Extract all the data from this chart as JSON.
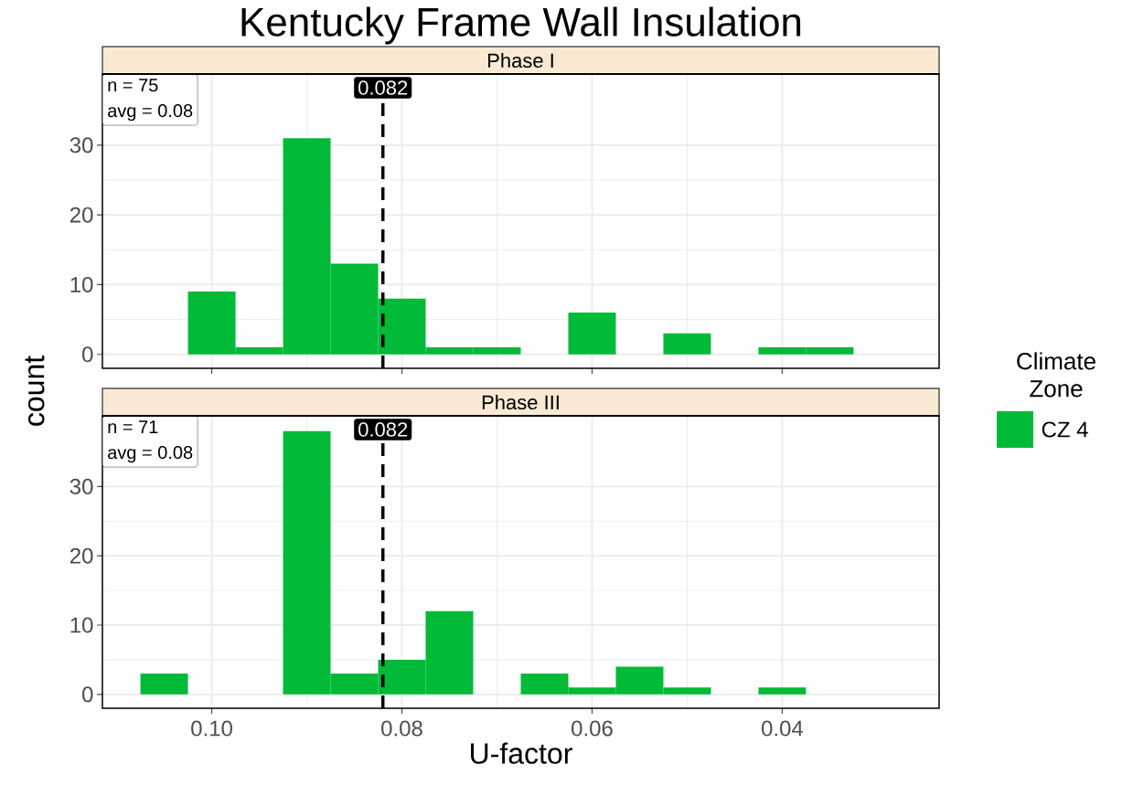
{
  "chart_data": [
    {
      "type": "histogram",
      "title": "Kentucky Frame Wall Insulation",
      "subtitle": "Phase I",
      "ylabel": "count",
      "legend_title": "Climate Zone",
      "legend": "right",
      "bins": [
        0.0325,
        0.0375,
        0.0425,
        0.0475,
        0.0525,
        0.0575,
        0.0625,
        0.0675,
        0.0725,
        0.0775,
        0.0825,
        0.0875,
        0.0925,
        0.0975,
        0.1025,
        0.1075
      ],
      "series": [
        {
          "name": "CZ 4",
          "color": "#00ba38",
          "values": [
            1,
            1,
            0,
            3,
            0,
            6,
            0,
            1,
            1,
            8,
            13,
            31,
            1,
            9,
            0
          ]
        }
      ],
      "xlim": [
        0.1115,
        0.0235
      ],
      "xticks": [
        0.1,
        0.08,
        0.06,
        0.04
      ],
      "ylim": [
        -2,
        40.2
      ],
      "yticks": [
        0,
        10,
        20,
        30
      ],
      "grid": true,
      "tick_labels": "y",
      "ref_lines": [
        {
          "axis": "x",
          "value": 0.082,
          "label": "0.082",
          "color": "#000000",
          "line_style": "dashed"
        }
      ],
      "annotations": [
        "n = 75",
        "avg = 0.08"
      ]
    },
    {
      "type": "histogram",
      "subtitle": "Phase III",
      "xlabel": "U-factor",
      "bins": [
        0.0325,
        0.0375,
        0.0425,
        0.0475,
        0.0525,
        0.0575,
        0.0625,
        0.0675,
        0.0725,
        0.0775,
        0.0825,
        0.0875,
        0.0925,
        0.0975,
        0.1025,
        0.1075
      ],
      "series": [
        {
          "color": "#00ba38",
          "values": [
            0,
            1,
            0,
            1,
            4,
            1,
            3,
            0,
            12,
            5,
            3,
            38,
            0,
            0,
            3
          ]
        }
      ],
      "xlim": [
        0.1115,
        0.0235
      ],
      "xticks": [
        {
          "value": 0.1,
          "label": "0.10"
        },
        0.08,
        0.06,
        0.04
      ],
      "ylim": [
        -2,
        40.2
      ],
      "yticks": [
        0,
        10,
        20,
        30
      ],
      "grid": true,
      "ref_lines": [
        {
          "axis": "x",
          "value": 0.082,
          "label": "0.082",
          "color": "#000000",
          "line_style": "dashed"
        }
      ],
      "annotations": [
        "n = 71",
        "avg = 0.08"
      ]
    }
  ]
}
